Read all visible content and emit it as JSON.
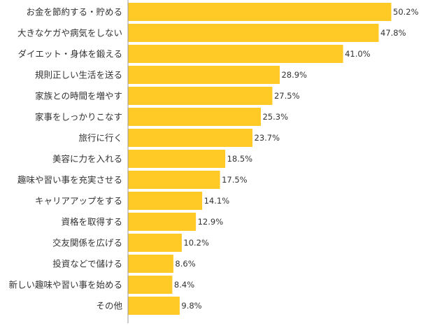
{
  "chart_data": {
    "type": "bar",
    "orientation": "horizontal",
    "categories": [
      "お金を節約する・貯める",
      "大きなケガや病気をしない",
      "ダイエット・身体を鍛える",
      "規則正しい生活を送る",
      "家族との時間を増やす",
      "家事をしっかりこなす",
      "旅行に行く",
      "美容に力を入れる",
      "趣味や習い事を充実させる",
      "キャリアアップをする",
      "資格を取得する",
      "交友関係を広げる",
      "投資などで儲ける",
      "新しい趣味や習い事を始める",
      "その他"
    ],
    "values": [
      50.2,
      47.8,
      41.0,
      28.9,
      27.5,
      25.3,
      23.7,
      18.5,
      17.5,
      14.1,
      12.9,
      10.2,
      8.6,
      8.4,
      9.8
    ],
    "value_labels": [
      "50.2%",
      "47.8%",
      "41.0%",
      "28.9%",
      "27.5%",
      "25.3%",
      "23.7%",
      "18.5%",
      "17.5%",
      "14.1%",
      "12.9%",
      "10.2%",
      "8.6%",
      "8.4%",
      "9.8%"
    ],
    "xlim": [
      0,
      50.2
    ],
    "grid": false,
    "legend": "none",
    "bar_color": "#FFC926",
    "axis_color": "#999999"
  }
}
